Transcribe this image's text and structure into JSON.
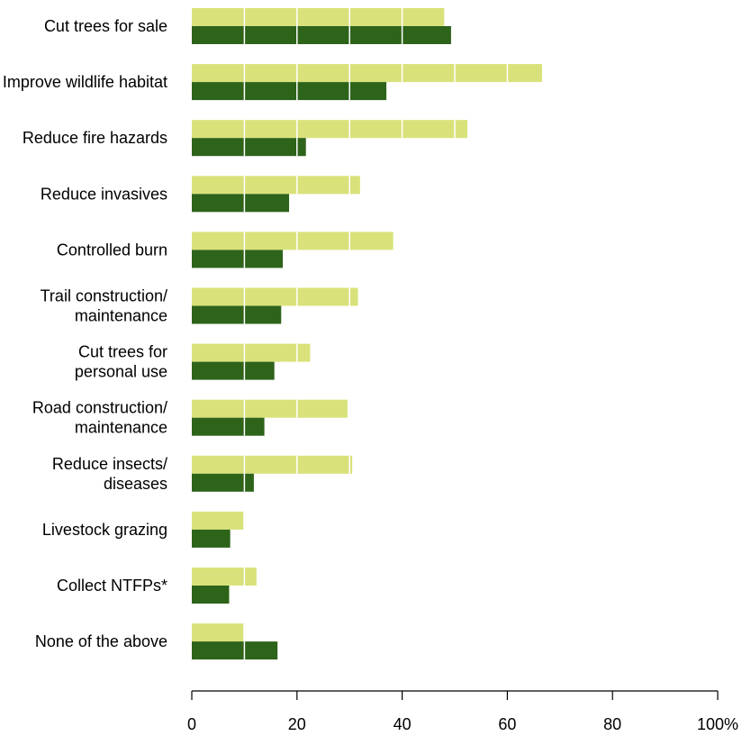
{
  "chart_data": {
    "type": "bar",
    "orientation": "horizontal",
    "categories": [
      [
        "Cut trees for sale"
      ],
      [
        "Improve wildlife habitat"
      ],
      [
        "Reduce fire hazards"
      ],
      [
        "Reduce invasives"
      ],
      [
        "Controlled burn"
      ],
      [
        "Trail construction/",
        "maintenance"
      ],
      [
        "Cut trees for",
        "personal use"
      ],
      [
        "Road construction/",
        "maintenance"
      ],
      [
        "Reduce insects/",
        "diseases"
      ],
      [
        "Livestock grazing"
      ],
      [
        "Collect NTFPs*"
      ],
      [
        "None of the above"
      ]
    ],
    "series": [
      {
        "values": [
          48,
          66.6,
          52.4,
          32,
          38.3,
          31.6,
          22.5,
          29.6,
          30.5,
          9.8,
          12.3,
          9.8
        ],
        "color": "#d9e27a"
      },
      {
        "values": [
          49.3,
          37,
          21.7,
          18.5,
          17.3,
          17,
          15.7,
          13.8,
          11.8,
          7.3,
          7.1,
          16.3
        ],
        "color": "#2e631a"
      }
    ],
    "x_ticks": [
      "0",
      "20",
      "40",
      "60",
      "80",
      "100%"
    ],
    "xlim": [
      0,
      100
    ],
    "grid_lines_on_bars_every": 10,
    "legend": "none",
    "title": "",
    "xlabel": "",
    "ylabel": ""
  }
}
